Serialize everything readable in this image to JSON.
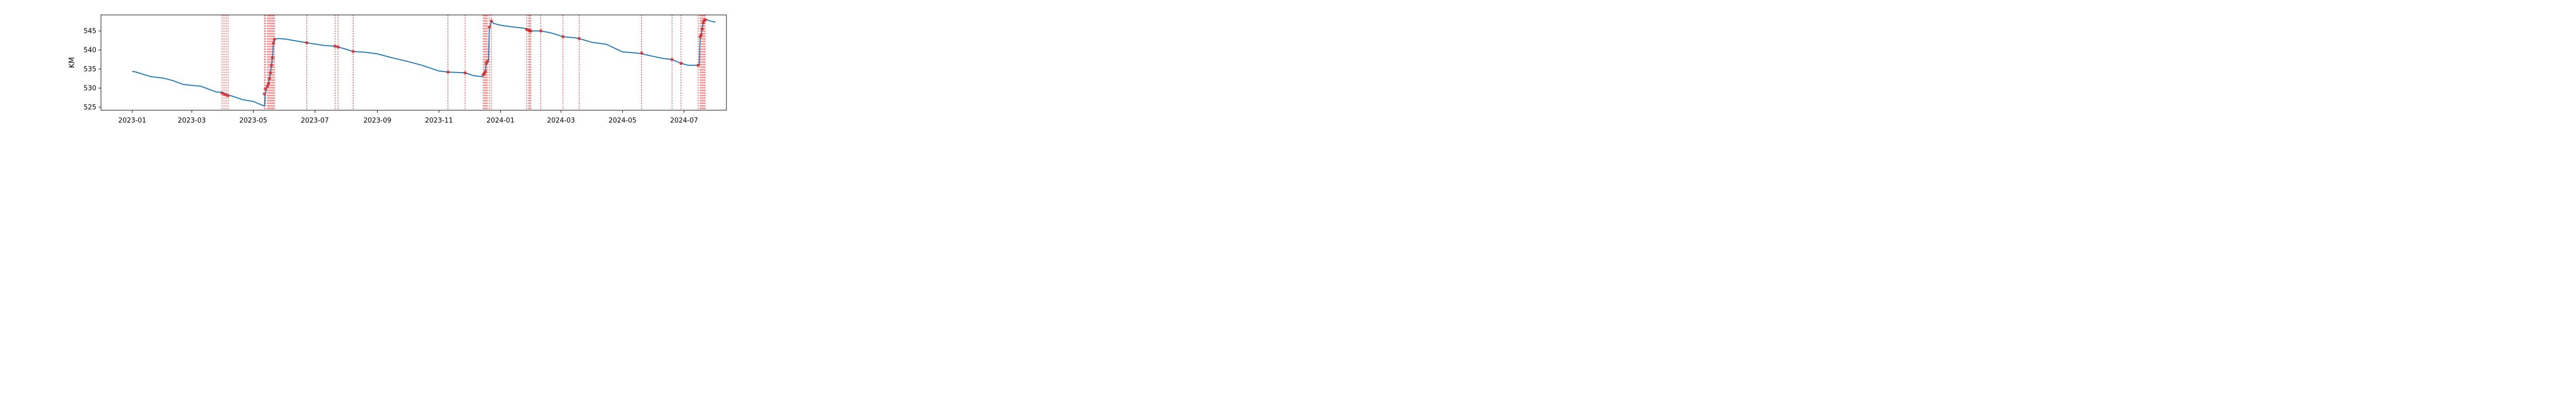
{
  "chart_data": {
    "type": "line",
    "title": "",
    "xlabel": "",
    "ylabel": "KM",
    "x_type": "date",
    "xlim": [
      "2022-12-01",
      "2024-08-12"
    ],
    "ylim": [
      524.2,
      549.2
    ],
    "grid": false,
    "legend": "none",
    "x_ticks": [
      "2023-01",
      "2023-03",
      "2023-05",
      "2023-07",
      "2023-09",
      "2023-11",
      "2024-01",
      "2024-03",
      "2024-05",
      "2024-07"
    ],
    "y_ticks": [
      525,
      530,
      535,
      540,
      545
    ],
    "colors": {
      "line": "#1f77b4",
      "marker": "#d62728",
      "vline": "#ff0000"
    },
    "series": [
      {
        "x": [
          "2023-01-01",
          "2023-01-05",
          "2023-01-12",
          "2023-01-20",
          "2023-02-01",
          "2023-02-10",
          "2023-02-20",
          "2023-03-01",
          "2023-03-10",
          "2023-03-16",
          "2023-03-25",
          "2023-03-31",
          "2023-04-02",
          "2023-04-04",
          "2023-04-06",
          "2023-04-10",
          "2023-04-20",
          "2023-05-01",
          "2023-05-10",
          "2023-05-12",
          "2023-05-13",
          "2023-05-14",
          "2023-05-15",
          "2023-05-16",
          "2023-05-17",
          "2023-05-18",
          "2023-05-19",
          "2023-05-20",
          "2023-05-21",
          "2023-05-22",
          "2023-05-25",
          "2023-06-01",
          "2023-06-10",
          "2023-06-23",
          "2023-07-10",
          "2023-07-21",
          "2023-07-24",
          "2023-08-01",
          "2023-08-08",
          "2023-08-20",
          "2023-09-01",
          "2023-09-15",
          "2023-10-01",
          "2023-10-15",
          "2023-11-01",
          "2023-11-10",
          "2023-11-20",
          "2023-11-27",
          "2023-12-05",
          "2023-12-14",
          "2023-12-15",
          "2023-12-16",
          "2023-12-17",
          "2023-12-18",
          "2023-12-19",
          "2023-12-20",
          "2023-12-21",
          "2023-12-22",
          "2023-12-23",
          "2023-12-24",
          "2023-12-25",
          "2024-01-01",
          "2024-01-15",
          "2024-01-25",
          "2024-01-27",
          "2024-01-29",
          "2024-01-31",
          "2024-02-01",
          "2024-02-10",
          "2024-02-20",
          "2024-03-03",
          "2024-03-15",
          "2024-03-19",
          "2024-04-01",
          "2024-04-15",
          "2024-05-01",
          "2024-05-15",
          "2024-05-20",
          "2024-06-01",
          "2024-06-10",
          "2024-06-19",
          "2024-06-28",
          "2024-07-05",
          "2024-07-15",
          "2024-07-16",
          "2024-07-17",
          "2024-07-18",
          "2024-07-19",
          "2024-07-20",
          "2024-07-21",
          "2024-07-22",
          "2024-07-23",
          "2024-07-27",
          "2024-08-01"
        ],
        "y": [
          534.4,
          534.2,
          533.6,
          533.0,
          532.6,
          532.0,
          531.0,
          530.7,
          530.5,
          529.9,
          529.0,
          528.9,
          528.7,
          528.4,
          528.2,
          527.9,
          527.0,
          526.5,
          525.5,
          525.3,
          528.5,
          529.8,
          530.5,
          531.2,
          532.5,
          534.0,
          536.0,
          538.0,
          541.8,
          542.8,
          543.0,
          542.9,
          542.5,
          541.9,
          541.2,
          541.0,
          540.8,
          540.2,
          539.6,
          539.4,
          539.0,
          538.0,
          537.0,
          536.0,
          534.5,
          534.2,
          534.1,
          534.0,
          533.3,
          533.0,
          533.5,
          533.8,
          534.3,
          536.5,
          537.0,
          537.0,
          546.0,
          546.5,
          547.6,
          547.4,
          547.0,
          546.5,
          546.0,
          545.7,
          545.4,
          545.2,
          545.0,
          545.0,
          545.0,
          544.5,
          543.5,
          543.2,
          543.0,
          542.0,
          541.5,
          539.5,
          539.2,
          539.0,
          538.3,
          537.8,
          537.5,
          536.5,
          536.0,
          536.0,
          536.0,
          543.5,
          544.0,
          545.5,
          547.2,
          547.8,
          547.9,
          548.0,
          547.6,
          547.3
        ]
      }
    ],
    "markers": {
      "x": [
        "2023-03-31",
        "2023-04-02",
        "2023-04-04",
        "2023-04-06",
        "2023-05-12",
        "2023-05-13",
        "2023-05-15",
        "2023-05-16",
        "2023-05-17",
        "2023-05-18",
        "2023-05-19",
        "2023-05-20",
        "2023-05-21",
        "2023-05-22",
        "2023-06-23",
        "2023-07-21",
        "2023-07-24",
        "2023-08-08",
        "2023-11-10",
        "2023-11-27",
        "2023-12-15",
        "2023-12-16",
        "2023-12-17",
        "2023-12-18",
        "2023-12-19",
        "2023-12-21",
        "2023-12-23",
        "2024-01-27",
        "2024-01-29",
        "2024-01-30",
        "2024-01-31",
        "2024-02-10",
        "2024-03-03",
        "2024-03-19",
        "2024-05-20",
        "2024-06-19",
        "2024-06-28",
        "2024-07-15",
        "2024-07-17",
        "2024-07-18",
        "2024-07-19",
        "2024-07-20",
        "2024-07-21",
        "2024-07-22"
      ],
      "y": [
        528.7,
        528.4,
        528.2,
        528.0,
        528.5,
        529.8,
        530.5,
        531.2,
        532.5,
        534.0,
        536.0,
        538.0,
        541.8,
        542.8,
        541.9,
        541.0,
        540.8,
        539.6,
        534.2,
        534.0,
        533.5,
        533.8,
        534.3,
        536.5,
        537.0,
        546.0,
        547.6,
        545.4,
        545.2,
        545.0,
        545.0,
        545.0,
        543.5,
        543.0,
        539.2,
        537.5,
        536.5,
        536.0,
        543.5,
        544.0,
        545.5,
        547.2,
        547.8,
        547.9
      ]
    }
  }
}
